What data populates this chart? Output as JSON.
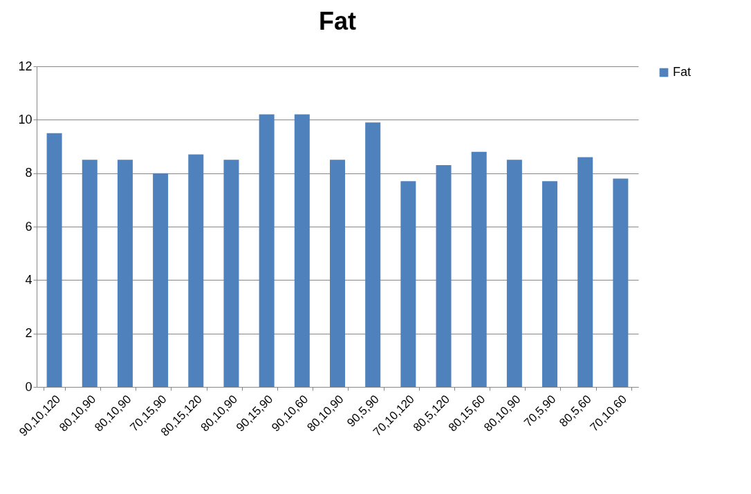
{
  "chart_data": {
    "type": "bar",
    "title": "Fat",
    "categories": [
      "90,10,120",
      "80,10,90",
      "80,10,90",
      "70,15,90",
      "80,15,120",
      "80,10,90",
      "90,15,90",
      "90,10,60",
      "80,10,90",
      "90,5,90",
      "70,10,120",
      "80,5,120",
      "80,15,60",
      "80,10,90",
      "70,5,90",
      "80,5,60",
      "70,10,60"
    ],
    "series": [
      {
        "name": "Fat",
        "color": "#4f81bd",
        "values": [
          9.5,
          8.5,
          8.5,
          8.0,
          8.7,
          8.5,
          10.2,
          10.2,
          8.5,
          9.9,
          7.7,
          8.3,
          8.8,
          8.5,
          7.7,
          8.6,
          7.8
        ]
      }
    ],
    "ylim": [
      0,
      12
    ],
    "yticks": [
      0,
      2,
      4,
      6,
      8,
      10,
      12
    ],
    "grid": "y",
    "legend": "right"
  }
}
